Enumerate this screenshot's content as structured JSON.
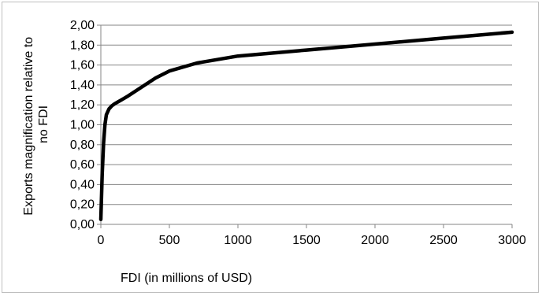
{
  "chart_data": {
    "type": "line",
    "title": "",
    "xlabel": "FDI (in millions of USD)",
    "ylabel_lines": [
      "Exports magnification relative to",
      "no FDI"
    ],
    "xlim": [
      0,
      3000
    ],
    "ylim": [
      0,
      2.0
    ],
    "x_ticks": [
      "0",
      "500",
      "1000",
      "1500",
      "2000",
      "2500",
      "3000"
    ],
    "y_ticks": [
      "0,00",
      "0,20",
      "0,40",
      "0,60",
      "0,80",
      "1,00",
      "1,20",
      "1,40",
      "1,60",
      "1,80",
      "2,00"
    ],
    "x_tick_values": [
      0,
      500,
      1000,
      1500,
      2000,
      2500,
      3000
    ],
    "y_tick_values": [
      0,
      0.2,
      0.4,
      0.6,
      0.8,
      1.0,
      1.2,
      1.4,
      1.6,
      1.8,
      2.0
    ],
    "grid": "horizontal",
    "legend": "none",
    "line_color": "#000000",
    "series": [
      {
        "x": [
          0,
          10,
          20,
          30,
          40,
          60,
          80,
          100,
          150,
          200,
          300,
          400,
          500,
          700,
          1000,
          1500,
          2000,
          2500,
          3000
        ],
        "values": [
          0.05,
          0.5,
          0.82,
          1.0,
          1.1,
          1.16,
          1.19,
          1.21,
          1.25,
          1.29,
          1.38,
          1.47,
          1.54,
          1.62,
          1.69,
          1.75,
          1.81,
          1.87,
          1.93
        ]
      }
    ]
  }
}
